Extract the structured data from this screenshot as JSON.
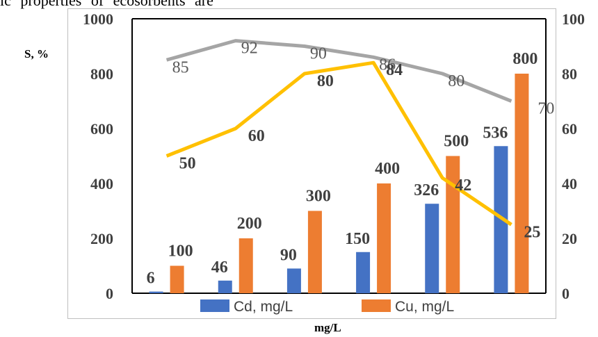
{
  "page": {
    "top_text": "ic properties of ecosorbents are"
  },
  "chart_data": {
    "type": "bar",
    "y_unit_label": "S, %",
    "x_unit_label": "mg/L",
    "ylim_left": [
      0,
      1000
    ],
    "ylim_right": [
      0,
      100
    ],
    "left_ticks": [
      "0",
      "200",
      "400",
      "600",
      "800",
      "1000"
    ],
    "right_ticks": [
      "0",
      "20",
      "40",
      "60",
      "80",
      "100"
    ],
    "categories": [
      "",
      "",
      "",
      "",
      "",
      ""
    ],
    "series": [
      {
        "name": "Cd, mg/L",
        "type": "bar",
        "axis": "left",
        "color": "#4472c4",
        "values": [
          6,
          46,
          90,
          150,
          326,
          536
        ]
      },
      {
        "name": "Cu, mg/L",
        "type": "bar",
        "axis": "left",
        "color": "#ed7d31",
        "values": [
          100,
          200,
          300,
          400,
          500,
          800
        ]
      },
      {
        "type": "line",
        "axis": "right",
        "color": "#a5a5a5",
        "values": [
          85,
          92,
          90,
          86,
          80,
          70
        ]
      },
      {
        "type": "line",
        "axis": "right",
        "color": "#ffc000",
        "values": [
          50,
          60,
          80,
          84,
          42,
          25
        ]
      }
    ],
    "legend": {
      "placement": "bottom"
    }
  }
}
